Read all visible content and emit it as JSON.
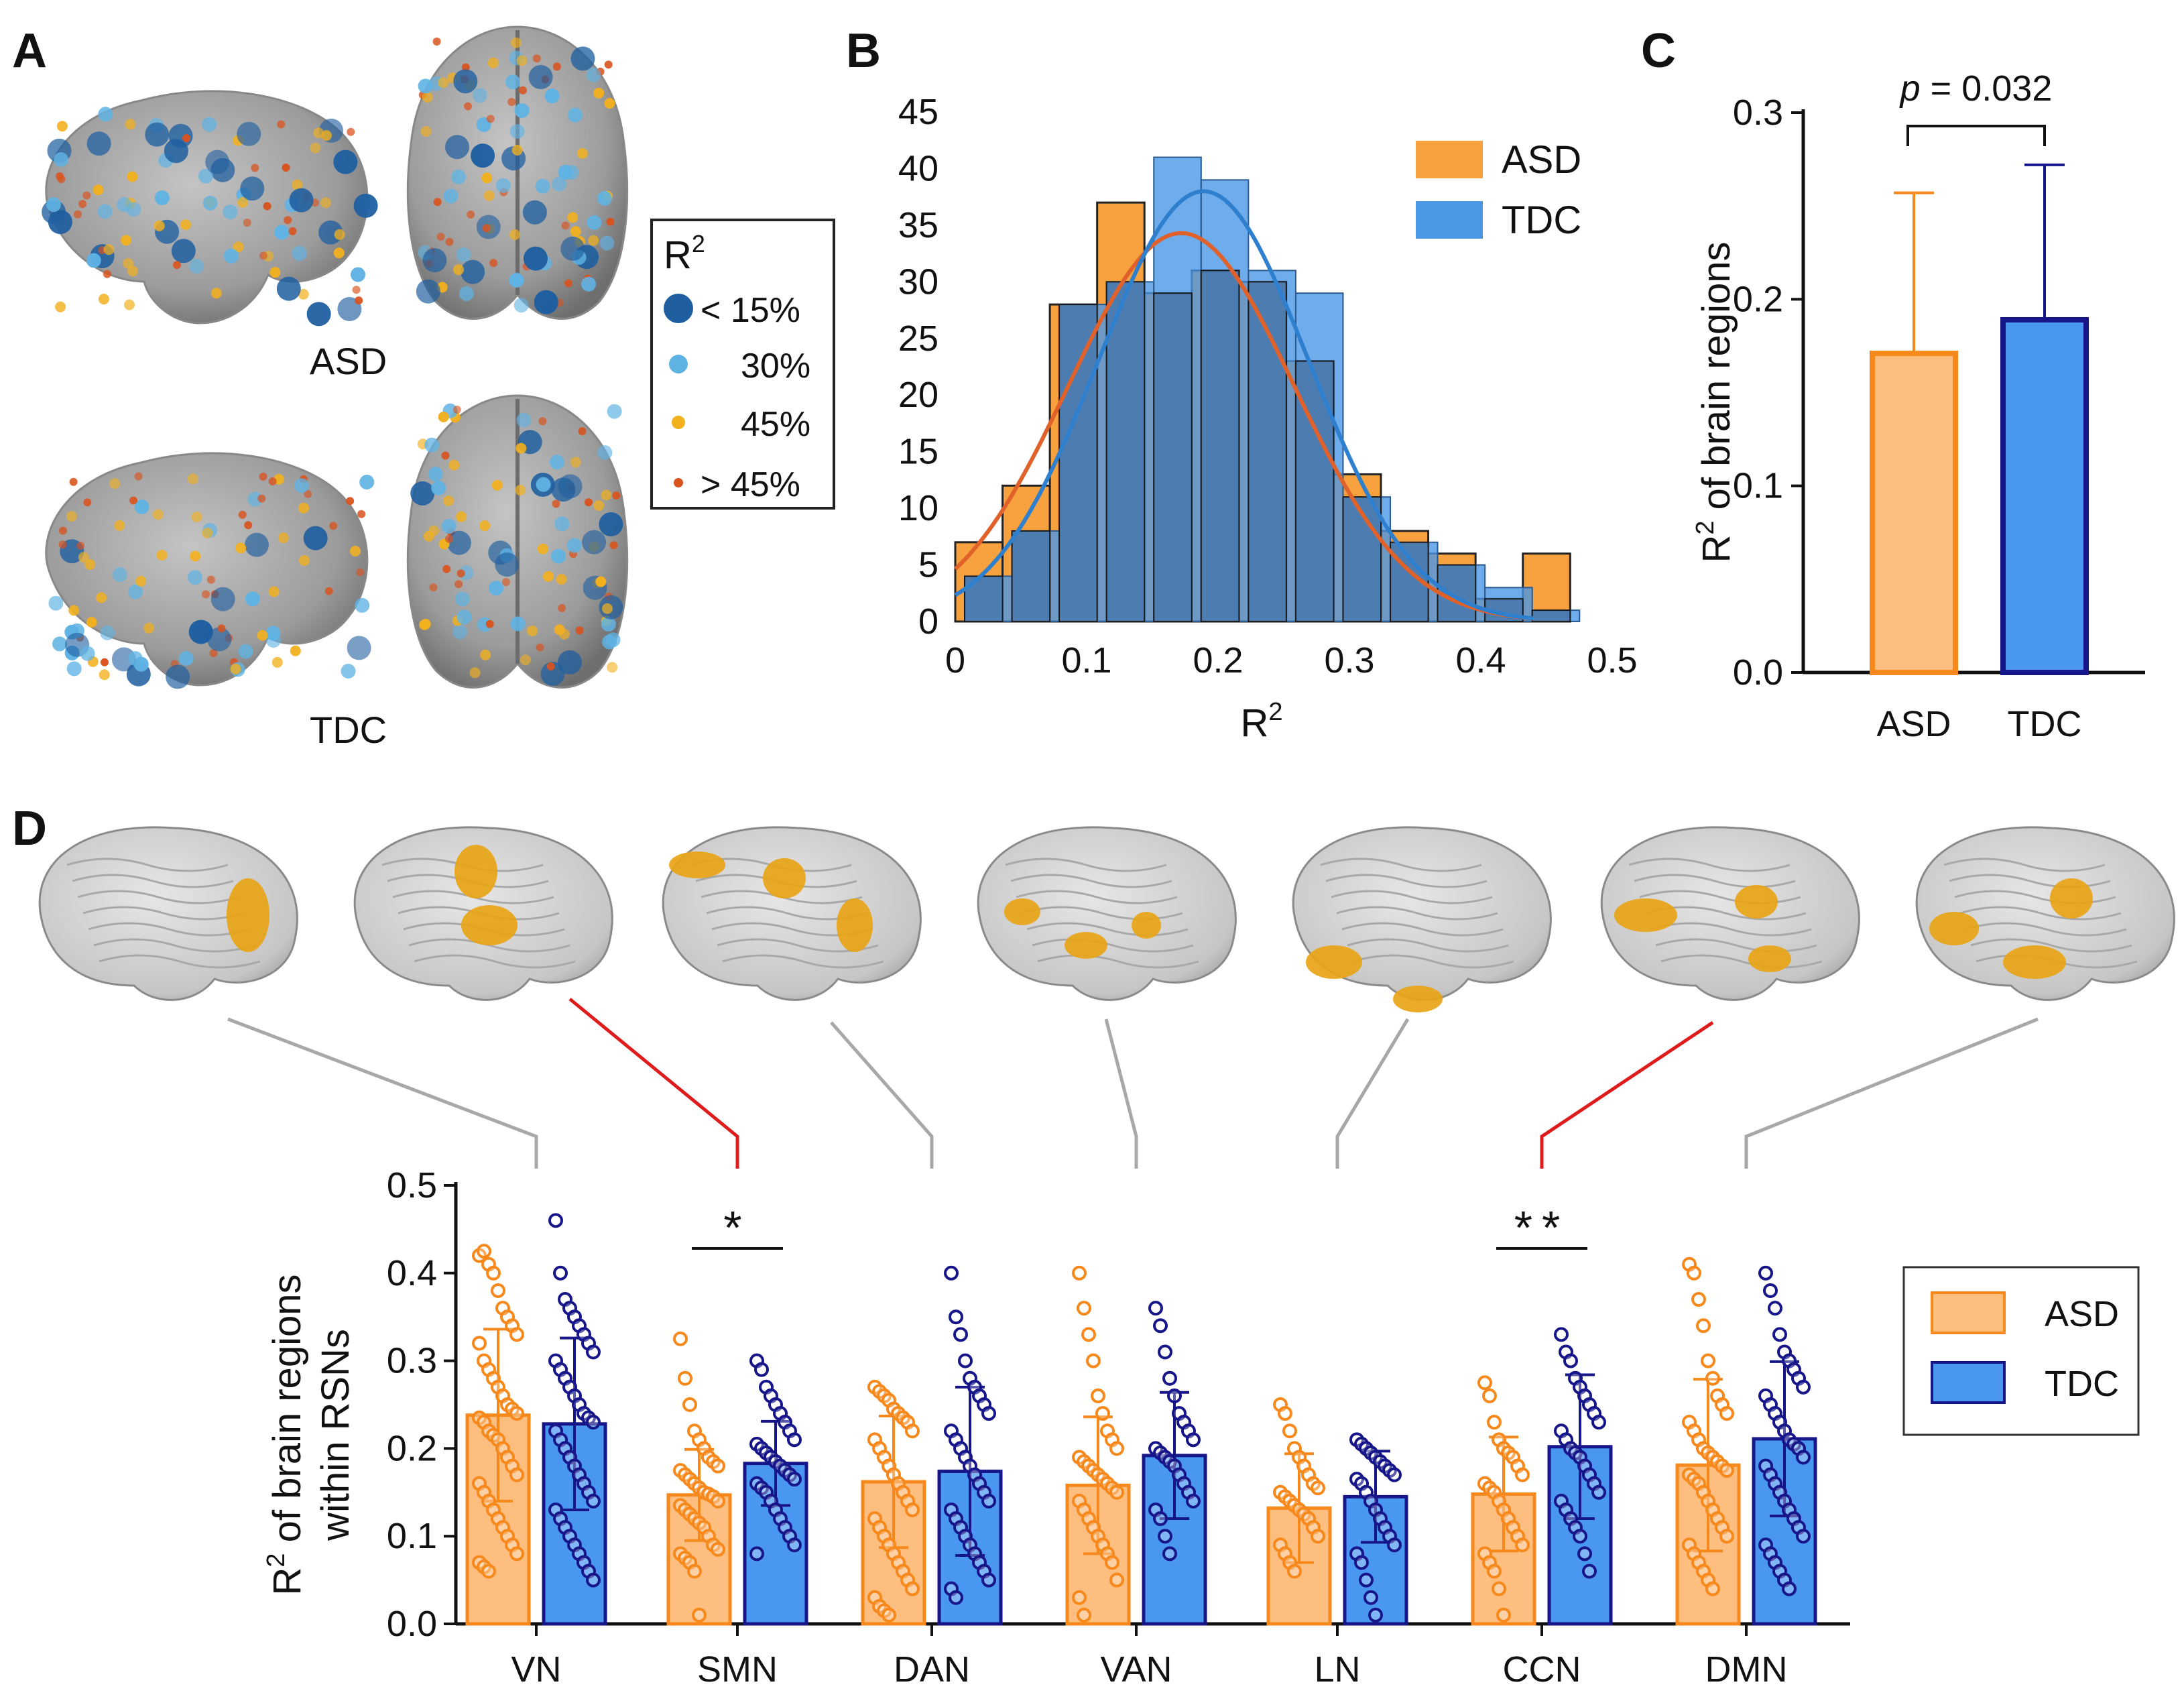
{
  "panels": {
    "A": {
      "label": "A",
      "groups": [
        "ASD",
        "TDC"
      ],
      "legend": {
        "title": "R",
        "title_sup": "2",
        "items": [
          {
            "label": "< 15%",
            "color": "#1f5fa0"
          },
          {
            "label": "30%",
            "color": "#5fb3e4"
          },
          {
            "label": "45%",
            "color": "#f2b01e"
          },
          {
            "label": "> 45%",
            "color": "#d9531e"
          }
        ]
      }
    },
    "B": {
      "label": "B"
    },
    "C": {
      "label": "C"
    },
    "D": {
      "label": "D",
      "networks": [
        {
          "name": "VN",
          "significant": false
        },
        {
          "name": "SMN",
          "significant": true
        },
        {
          "name": "DAN",
          "significant": false
        },
        {
          "name": "VAN",
          "significant": false
        },
        {
          "name": "LN",
          "significant": false
        },
        {
          "name": "CCN",
          "significant": true
        },
        {
          "name": "DMN",
          "significant": false
        }
      ],
      "highlight_color": "#e8a417"
    }
  },
  "colors": {
    "asd_hist": "#f7a13f",
    "tdc_hist": "#4a97e6",
    "overlap": "#4d7cb0",
    "asd_curve": "#e0622a",
    "tdc_curve": "#2f7fcf",
    "asd_bar_fill": "#fdbe7f",
    "asd_bar_edge": "#f7891c",
    "tdc_bar_fill": "#4a97f2",
    "tdc_bar_edge": "#16168a"
  },
  "chart_data": [
    {
      "id": "B",
      "type": "histogram",
      "xlabel": "R",
      "xlabel_sup": "2",
      "xlim": [
        0,
        0.5
      ],
      "ylim": [
        0,
        45
      ],
      "xticks": [
        "0",
        "0.1",
        "0.2",
        "0.3",
        "0.4",
        "0.5"
      ],
      "yticks": [
        "0",
        "5",
        "10",
        "15",
        "20",
        "25",
        "30",
        "35",
        "40",
        "45"
      ],
      "series": [
        {
          "name": "ASD",
          "bin_width": 0.036,
          "start": 0,
          "counts": [
            7,
            12,
            28,
            37,
            29,
            31,
            30,
            23,
            13,
            8,
            6,
            2,
            6
          ],
          "fit": {
            "mean": 0.172,
            "peak": 34.3,
            "sd": 0.086
          }
        },
        {
          "name": "TDC",
          "bin_width": 0.036,
          "start": 0,
          "counts": [
            4,
            8,
            28,
            30,
            41,
            39,
            31,
            29,
            11,
            7,
            5,
            3,
            1
          ],
          "fit": {
            "mean": 0.189,
            "peak": 38.0,
            "sd": 0.08
          }
        }
      ],
      "legend": [
        "ASD",
        "TDC"
      ]
    },
    {
      "id": "C",
      "type": "bar",
      "categories": [
        "ASD",
        "TDC"
      ],
      "values": [
        0.171,
        0.189
      ],
      "errors": [
        0.086,
        0.083
      ],
      "ylabel": "R",
      "ylabel_sup": "2",
      "ylabel_rest": " of brain regions",
      "ylim": [
        0,
        0.3
      ],
      "yticks": [
        "0.0",
        "0.1",
        "0.2",
        "0.3"
      ],
      "annotation": {
        "p_label": "p",
        "p_value": " = 0.032"
      }
    },
    {
      "id": "D",
      "type": "bar",
      "categories": [
        "VN",
        "SMN",
        "DAN",
        "VAN",
        "LN",
        "CCN",
        "DMN"
      ],
      "ylabel_line1": "R",
      "ylabel_sup": "2",
      "ylabel_line1_rest": " of brain regions",
      "ylabel_line2": "within RSNs",
      "ylim": [
        0,
        0.5
      ],
      "yticks": [
        "0.0",
        "0.1",
        "0.2",
        "0.3",
        "0.4",
        "0.5"
      ],
      "legend": [
        "ASD",
        "TDC"
      ],
      "series": [
        {
          "name": "ASD",
          "values": [
            0.238,
            0.147,
            0.162,
            0.158,
            0.132,
            0.148,
            0.181
          ],
          "errors": [
            0.098,
            0.052,
            0.075,
            0.078,
            0.062,
            0.065,
            0.098
          ]
        },
        {
          "name": "TDC",
          "values": [
            0.228,
            0.183,
            0.174,
            0.192,
            0.145,
            0.202,
            0.211
          ],
          "errors": [
            0.098,
            0.048,
            0.096,
            0.072,
            0.052,
            0.082,
            0.088
          ]
        }
      ],
      "significance": [
        {
          "category": "SMN",
          "label": "*"
        },
        {
          "category": "CCN",
          "label": "**"
        }
      ],
      "points": {
        "ASD": [
          [
            0.42,
            0.425,
            0.41,
            0.4,
            0.38,
            0.36,
            0.35,
            0.34,
            0.33,
            0.32,
            0.3,
            0.29,
            0.28,
            0.27,
            0.26,
            0.25,
            0.245,
            0.24,
            0.235,
            0.23,
            0.22,
            0.215,
            0.21,
            0.2,
            0.19,
            0.18,
            0.17,
            0.16,
            0.15,
            0.14,
            0.13,
            0.12,
            0.11,
            0.1,
            0.09,
            0.08,
            0.07,
            0.065,
            0.06
          ],
          [
            0.325,
            0.28,
            0.25,
            0.22,
            0.21,
            0.2,
            0.19,
            0.185,
            0.18,
            0.175,
            0.17,
            0.165,
            0.16,
            0.155,
            0.15,
            0.148,
            0.145,
            0.14,
            0.135,
            0.13,
            0.125,
            0.12,
            0.115,
            0.11,
            0.1,
            0.09,
            0.085,
            0.08,
            0.075,
            0.07,
            0.06,
            0.01
          ],
          [
            0.27,
            0.265,
            0.26,
            0.255,
            0.245,
            0.24,
            0.235,
            0.23,
            0.22,
            0.21,
            0.2,
            0.19,
            0.18,
            0.17,
            0.16,
            0.15,
            0.14,
            0.13,
            0.12,
            0.11,
            0.1,
            0.09,
            0.08,
            0.07,
            0.06,
            0.05,
            0.04,
            0.03,
            0.02,
            0.015,
            0.01
          ],
          [
            0.4,
            0.36,
            0.33,
            0.3,
            0.26,
            0.24,
            0.22,
            0.21,
            0.2,
            0.19,
            0.185,
            0.18,
            0.175,
            0.17,
            0.165,
            0.16,
            0.155,
            0.15,
            0.14,
            0.13,
            0.12,
            0.11,
            0.1,
            0.09,
            0.08,
            0.07,
            0.05,
            0.03,
            0.01
          ],
          [
            0.25,
            0.24,
            0.22,
            0.2,
            0.19,
            0.18,
            0.17,
            0.16,
            0.155,
            0.15,
            0.145,
            0.14,
            0.135,
            0.13,
            0.125,
            0.12,
            0.11,
            0.1,
            0.09,
            0.08,
            0.07,
            0.06
          ],
          [
            0.275,
            0.26,
            0.23,
            0.21,
            0.2,
            0.195,
            0.19,
            0.18,
            0.17,
            0.16,
            0.155,
            0.15,
            0.14,
            0.13,
            0.12,
            0.11,
            0.1,
            0.09,
            0.08,
            0.07,
            0.06,
            0.04,
            0.01
          ],
          [
            0.41,
            0.4,
            0.37,
            0.34,
            0.3,
            0.28,
            0.26,
            0.25,
            0.24,
            0.23,
            0.22,
            0.21,
            0.2,
            0.195,
            0.19,
            0.185,
            0.18,
            0.175,
            0.17,
            0.165,
            0.16,
            0.15,
            0.14,
            0.13,
            0.12,
            0.11,
            0.1,
            0.09,
            0.08,
            0.07,
            0.06,
            0.05,
            0.04
          ]
        ],
        "TDC": [
          [
            0.46,
            0.4,
            0.37,
            0.36,
            0.35,
            0.34,
            0.33,
            0.32,
            0.31,
            0.3,
            0.29,
            0.28,
            0.27,
            0.26,
            0.25,
            0.24,
            0.235,
            0.23,
            0.22,
            0.21,
            0.2,
            0.19,
            0.18,
            0.17,
            0.16,
            0.15,
            0.14,
            0.13,
            0.12,
            0.11,
            0.1,
            0.09,
            0.08,
            0.07,
            0.06,
            0.05
          ],
          [
            0.3,
            0.29,
            0.27,
            0.26,
            0.25,
            0.24,
            0.23,
            0.22,
            0.21,
            0.205,
            0.2,
            0.195,
            0.19,
            0.185,
            0.18,
            0.175,
            0.17,
            0.165,
            0.16,
            0.155,
            0.15,
            0.14,
            0.13,
            0.12,
            0.11,
            0.1,
            0.09,
            0.08
          ],
          [
            0.4,
            0.35,
            0.33,
            0.3,
            0.28,
            0.27,
            0.26,
            0.25,
            0.24,
            0.22,
            0.21,
            0.2,
            0.19,
            0.18,
            0.17,
            0.16,
            0.15,
            0.14,
            0.13,
            0.12,
            0.11,
            0.1,
            0.09,
            0.08,
            0.07,
            0.06,
            0.05,
            0.04,
            0.03
          ],
          [
            0.36,
            0.34,
            0.31,
            0.28,
            0.26,
            0.24,
            0.23,
            0.22,
            0.21,
            0.2,
            0.195,
            0.19,
            0.185,
            0.18,
            0.17,
            0.16,
            0.15,
            0.14,
            0.13,
            0.12,
            0.1,
            0.08
          ],
          [
            0.21,
            0.205,
            0.2,
            0.195,
            0.19,
            0.185,
            0.18,
            0.175,
            0.17,
            0.165,
            0.16,
            0.15,
            0.14,
            0.13,
            0.12,
            0.11,
            0.1,
            0.09,
            0.08,
            0.07,
            0.05,
            0.03,
            0.01
          ],
          [
            0.33,
            0.31,
            0.3,
            0.28,
            0.27,
            0.26,
            0.25,
            0.24,
            0.23,
            0.22,
            0.21,
            0.2,
            0.195,
            0.19,
            0.18,
            0.17,
            0.16,
            0.15,
            0.14,
            0.13,
            0.12,
            0.11,
            0.1,
            0.08,
            0.06
          ],
          [
            0.4,
            0.38,
            0.36,
            0.33,
            0.31,
            0.3,
            0.29,
            0.28,
            0.27,
            0.26,
            0.25,
            0.24,
            0.23,
            0.22,
            0.21,
            0.205,
            0.2,
            0.19,
            0.18,
            0.17,
            0.16,
            0.15,
            0.14,
            0.13,
            0.12,
            0.11,
            0.1,
            0.09,
            0.08,
            0.07,
            0.06,
            0.05,
            0.04
          ]
        ]
      }
    }
  ]
}
